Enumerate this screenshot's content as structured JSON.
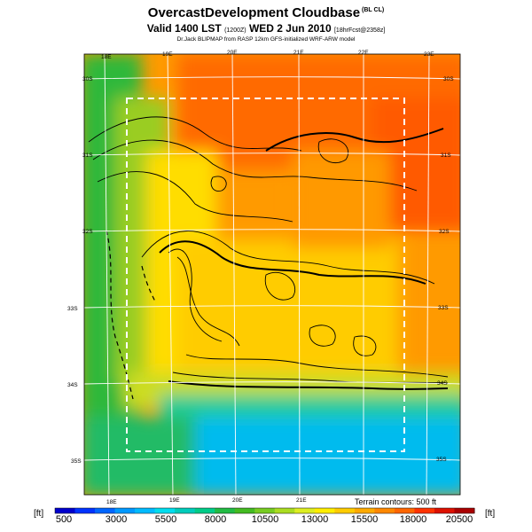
{
  "title": {
    "main": "OvercastDevelopment Cloudbase",
    "main_suffix": "(BL CL)",
    "valid_prefix": "Valid 1400 LST",
    "valid_utc": "(1200Z)",
    "valid_day": "WED 2 Jun 2010",
    "valid_fcst": "[18hrFcst@2358z]",
    "credit": "Dr.Jack BLIPMAP from RASP 12km GFS-initialized WRF-ARW model"
  },
  "map": {
    "top_lon_labels": [
      "18E",
      "19E",
      "20E",
      "21E",
      "22E",
      "23E"
    ],
    "bottom_lon_labels": [
      "18E",
      "19E",
      "20E",
      "21E"
    ],
    "left_lat_labels": [
      "30S",
      "31S",
      "32S",
      "33S",
      "34S",
      "35S"
    ],
    "right_lat_labels": [
      "30S",
      "31S",
      "32S",
      "33S",
      "34S",
      "35S"
    ],
    "contour_note": "Terrain contours: 500 ft"
  },
  "colorbar": {
    "unit": "[ft]",
    "tick_labels": [
      "500",
      "3000",
      "5500",
      "8000",
      "10500",
      "13000",
      "15500",
      "18000",
      "20500"
    ],
    "colors": [
      "#0000cc",
      "#0033ff",
      "#0066ff",
      "#0099ff",
      "#00bbff",
      "#00ddee",
      "#00ccbb",
      "#00cc88",
      "#22bb44",
      "#44bb22",
      "#77cc22",
      "#aadd22",
      "#ddee22",
      "#ffee00",
      "#ffcc00",
      "#ffaa00",
      "#ff8800",
      "#ff6600",
      "#ff3300",
      "#dd1100",
      "#aa0000"
    ]
  }
}
